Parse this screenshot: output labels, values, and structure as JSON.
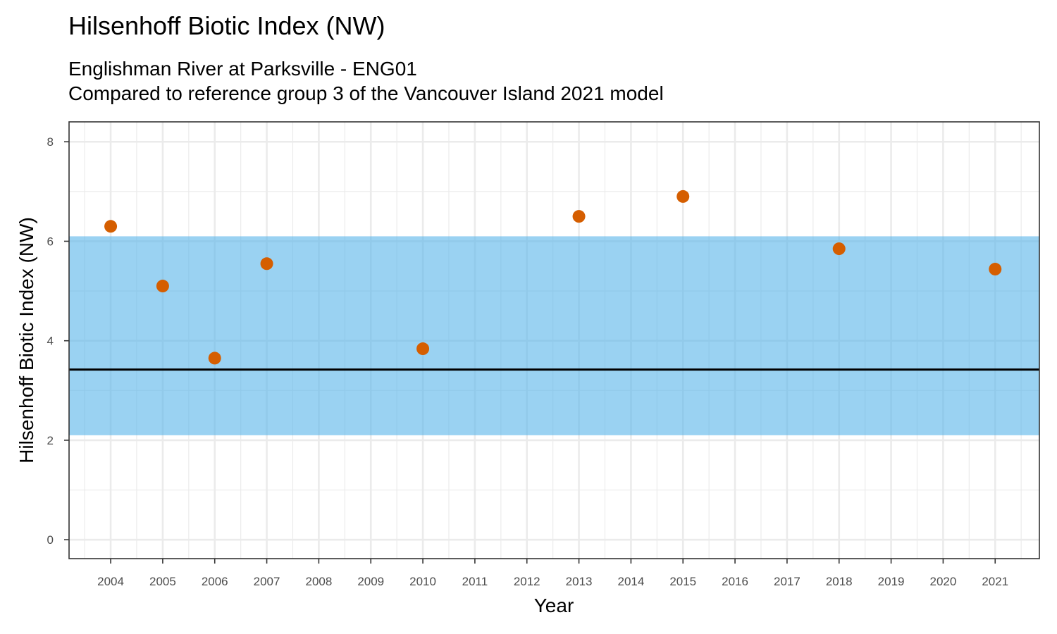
{
  "chart_data": {
    "type": "scatter",
    "title": "Hilsenhoff Biotic Index (NW)",
    "subtitle": [
      "Englishman River at Parksville - ENG01",
      "Compared to reference group 3 of the Vancouver Island 2021 model"
    ],
    "xlabel": "Year",
    "ylabel": "Hilsenhoff Biotic Index (NW)",
    "xlim": [
      2003.2,
      2021.85
    ],
    "ylim": [
      -0.38,
      8.4
    ],
    "x_ticks": [
      2004,
      2005,
      2006,
      2007,
      2008,
      2009,
      2010,
      2011,
      2012,
      2013,
      2014,
      2015,
      2016,
      2017,
      2018,
      2019,
      2020,
      2021
    ],
    "y_ticks": [
      0,
      2,
      4,
      6,
      8
    ],
    "grid": true,
    "reference_band": {
      "lower": 2.1,
      "upper": 6.1,
      "color": "#56B4E9"
    },
    "reference_line": {
      "y": 3.42,
      "color": "#000000"
    },
    "series": [
      {
        "color": "#D55E00",
        "points": [
          {
            "x": 2004,
            "y": 6.3
          },
          {
            "x": 2005,
            "y": 5.1
          },
          {
            "x": 2006,
            "y": 3.65
          },
          {
            "x": 2007,
            "y": 5.55
          },
          {
            "x": 2010,
            "y": 3.84
          },
          {
            "x": 2013,
            "y": 6.5
          },
          {
            "x": 2015,
            "y": 6.9
          },
          {
            "x": 2018,
            "y": 5.85
          },
          {
            "x": 2021,
            "y": 5.44
          }
        ]
      }
    ]
  }
}
